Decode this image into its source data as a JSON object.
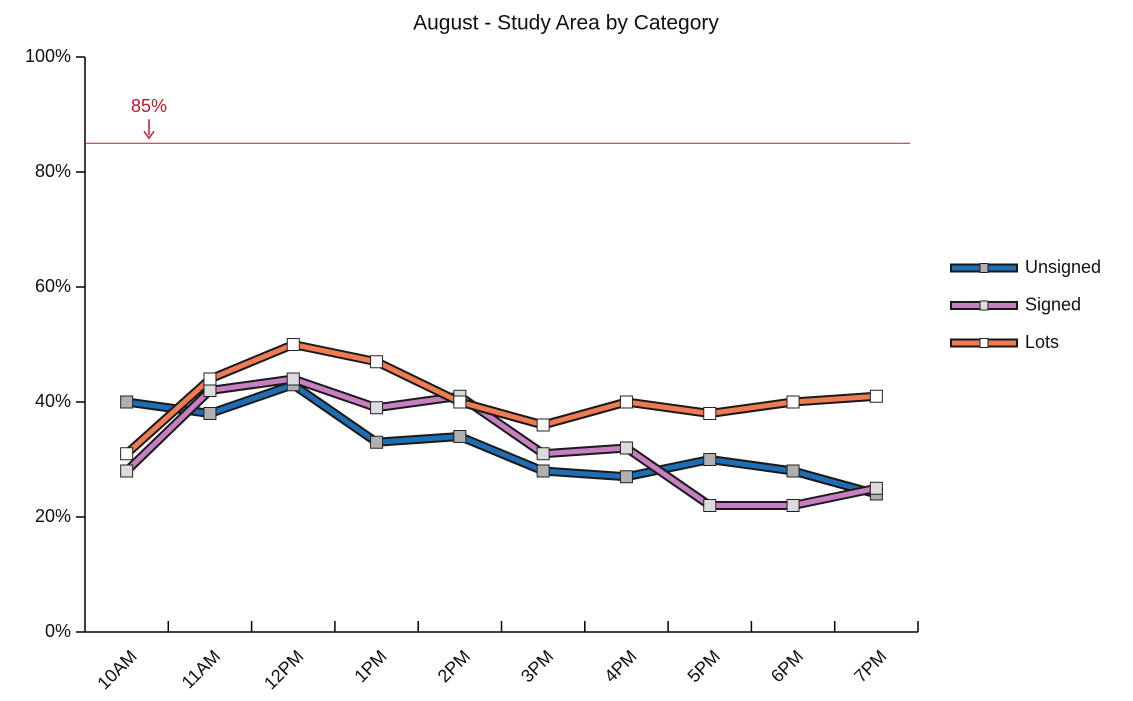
{
  "chart_data": {
    "type": "line",
    "title": "August - Study Area by Category",
    "categories": [
      "10AM",
      "11AM",
      "12PM",
      "1PM",
      "2PM",
      "3PM",
      "4PM",
      "5PM",
      "6PM",
      "7PM"
    ],
    "series": [
      {
        "name": "Unsigned",
        "color": "#1f6db5",
        "marker_color": "#b0b0b0",
        "values": [
          40,
          38,
          43,
          33,
          34,
          28,
          27,
          30,
          28,
          24
        ]
      },
      {
        "name": "Signed",
        "color": "#c67fc1",
        "marker_color": "#dcdcdc",
        "values": [
          28,
          42,
          44,
          39,
          41,
          31,
          32,
          22,
          22,
          25
        ]
      },
      {
        "name": "Lots",
        "color": "#ee7b52",
        "marker_color": "#ffffff",
        "values": [
          31,
          44,
          50,
          47,
          40,
          36,
          40,
          38,
          40,
          41
        ]
      }
    ],
    "ylim": [
      0,
      100
    ],
    "yticks": [
      {
        "value": 0,
        "label": "0%"
      },
      {
        "value": 20,
        "label": "20%"
      },
      {
        "value": 40,
        "label": "40%"
      },
      {
        "value": 60,
        "label": "60%"
      },
      {
        "value": 80,
        "label": "80%"
      },
      {
        "value": 100,
        "label": "100%"
      }
    ],
    "reference_line": {
      "value": 85,
      "label": "85%",
      "color": "#c0182a"
    },
    "legend": "right"
  }
}
